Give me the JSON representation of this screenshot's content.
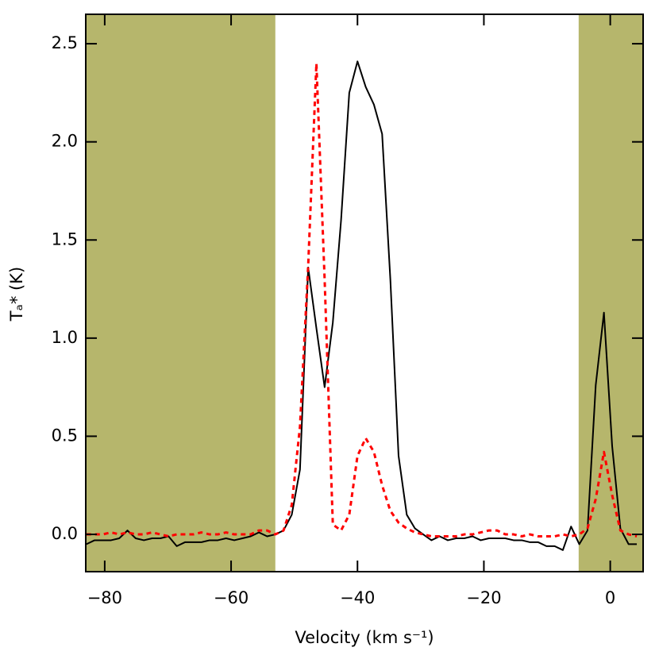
{
  "chart_data": {
    "type": "line",
    "xlabel": "Velocity (km s⁻¹)",
    "ylabel": "Tₐ* (K)",
    "xlim": [
      -83,
      5.2
    ],
    "ylim": [
      -0.19,
      2.65
    ],
    "xticks": [
      {
        "value": -80,
        "label": "−80"
      },
      {
        "value": -60,
        "label": "−60"
      },
      {
        "value": -40,
        "label": "−40"
      },
      {
        "value": -20,
        "label": "−20"
      },
      0
    ],
    "yticks": [
      {
        "value": 0,
        "label": "0.0"
      },
      0.5,
      {
        "value": 1,
        "label": "1.0"
      },
      1.5,
      {
        "value": 2,
        "label": "2.0"
      },
      2.5
    ],
    "shaded": {
      "color": "#b6b66c",
      "ranges": [
        [
          -83,
          -53
        ],
        [
          -5,
          5.2
        ]
      ]
    },
    "x": [
      -82.9,
      -81.6,
      -80.3,
      -79.0,
      -77.7,
      -76.4,
      -75.1,
      -73.8,
      -72.5,
      -71.2,
      -69.9,
      -68.6,
      -67.3,
      -66.0,
      -64.7,
      -63.4,
      -62.1,
      -60.8,
      -59.5,
      -58.2,
      -56.9,
      -55.6,
      -54.3,
      -53.0,
      -51.7,
      -50.4,
      -49.1,
      -47.8,
      -46.5,
      -45.2,
      -43.9,
      -42.6,
      -41.3,
      -40.0,
      -38.7,
      -37.4,
      -36.1,
      -34.8,
      -33.5,
      -32.2,
      -30.9,
      -29.6,
      -28.3,
      -27.0,
      -25.7,
      -24.4,
      -23.1,
      -21.8,
      -20.5,
      -19.2,
      -17.9,
      -16.6,
      -15.3,
      -14.0,
      -12.7,
      -11.4,
      -10.1,
      -8.8,
      -7.5,
      -6.2,
      -4.9,
      -3.6,
      -2.3,
      -1.0,
      0.3,
      1.6,
      2.9,
      4.2
    ],
    "series": [
      {
        "color": "#000000",
        "dash": false,
        "values": [
          -0.05,
          -0.03,
          -0.03,
          -0.03,
          -0.02,
          0.02,
          -0.02,
          -0.03,
          -0.02,
          -0.02,
          -0.01,
          -0.06,
          -0.04,
          -0.04,
          -0.04,
          -0.03,
          -0.03,
          -0.02,
          -0.03,
          -0.02,
          -0.01,
          0.01,
          -0.01,
          0.0,
          0.02,
          0.1,
          0.33,
          1.36,
          1.05,
          0.75,
          1.08,
          1.6,
          2.25,
          2.41,
          2.28,
          2.19,
          2.04,
          1.3,
          0.4,
          0.1,
          0.03,
          0.0,
          -0.03,
          -0.01,
          -0.03,
          -0.02,
          -0.02,
          -0.01,
          -0.03,
          -0.02,
          -0.02,
          -0.02,
          -0.03,
          -0.03,
          -0.04,
          -0.04,
          -0.06,
          -0.06,
          -0.08,
          0.04,
          -0.05,
          0.02,
          0.76,
          1.13,
          0.45,
          0.03,
          -0.05,
          -0.05
        ]
      },
      {
        "color": "#ff0000",
        "dash": true,
        "values": [
          0.0,
          0.0,
          0.0,
          0.01,
          0.0,
          0.01,
          0.0,
          0.0,
          0.01,
          0.0,
          -0.01,
          0.0,
          0.0,
          0.0,
          0.01,
          0.0,
          0.0,
          0.01,
          0.0,
          0.0,
          0.0,
          0.02,
          0.02,
          0.0,
          0.02,
          0.15,
          0.55,
          1.37,
          2.4,
          1.3,
          0.05,
          0.02,
          0.1,
          0.4,
          0.49,
          0.42,
          0.25,
          0.12,
          0.06,
          0.03,
          0.01,
          0.0,
          -0.01,
          -0.01,
          -0.01,
          -0.01,
          0.0,
          0.0,
          0.01,
          0.02,
          0.02,
          0.0,
          0.0,
          -0.01,
          0.0,
          -0.01,
          -0.01,
          -0.01,
          0.0,
          -0.01,
          0.0,
          0.03,
          0.18,
          0.42,
          0.2,
          0.02,
          0.0,
          -0.01
        ]
      }
    ]
  }
}
